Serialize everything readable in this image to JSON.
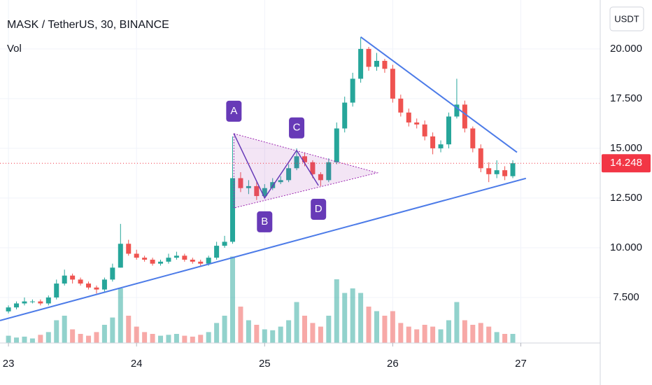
{
  "chart_data": {
    "type": "candlestick",
    "title": "MASK / TetherUS, 30, BINANCE",
    "volume_label": "Vol",
    "currency": "USDT",
    "x": [
      23,
      23.0625,
      23.125,
      23.1875,
      23.25,
      23.3125,
      23.375,
      23.4375,
      23.5,
      23.5625,
      23.625,
      23.6875,
      23.75,
      23.8125,
      23.875,
      23.9375,
      24,
      24.0625,
      24.125,
      24.1875,
      24.25,
      24.3125,
      24.375,
      24.4375,
      24.5,
      24.5625,
      24.625,
      24.6875,
      24.75,
      24.8125,
      24.875,
      24.9375,
      25,
      25.0625,
      25.125,
      25.1875,
      25.25,
      25.3125,
      25.375,
      25.4375,
      25.5,
      25.5625,
      25.625,
      25.6875,
      25.75,
      25.8125,
      25.875,
      25.9375,
      26,
      26.0625,
      26.125,
      26.1875,
      26.25,
      26.3125,
      26.375,
      26.4375,
      26.5,
      26.5625,
      26.625,
      26.6875,
      26.75,
      26.8125,
      26.875,
      26.9375
    ],
    "open": [
      6.8,
      7.0,
      7.2,
      7.3,
      7.3,
      7.2,
      7.5,
      8.2,
      8.6,
      8.4,
      8.2,
      8.0,
      7.9,
      8.4,
      9.0,
      10.2,
      9.7,
      9.5,
      9.4,
      9.2,
      9.3,
      9.5,
      9.6,
      9.4,
      9.3,
      9.2,
      9.5,
      10.1,
      10.3,
      13.5,
      13.0,
      13.1,
      12.6,
      13.0,
      13.3,
      13.4,
      14.0,
      14.6,
      14.3,
      13.7,
      13.4,
      14.3,
      16.0,
      17.3,
      18.5,
      20.0,
      19.1,
      19.4,
      19.0,
      17.5,
      16.8,
      16.3,
      16.2,
      15.6,
      15.0,
      15.2,
      16.6,
      17.2,
      16.0,
      15.0,
      14.0,
      13.7,
      13.9,
      13.6
    ],
    "high": [
      7.1,
      7.3,
      7.5,
      7.4,
      7.4,
      7.6,
      8.4,
      8.9,
      8.7,
      8.5,
      8.3,
      8.1,
      8.5,
      9.2,
      11.2,
      10.4,
      9.9,
      9.6,
      9.5,
      9.4,
      9.7,
      9.8,
      9.7,
      9.5,
      9.4,
      9.6,
      10.3,
      10.6,
      15.6,
      13.8,
      13.4,
      13.3,
      13.2,
      13.5,
      13.6,
      14.2,
      15.0,
      14.8,
      14.4,
      13.8,
      14.5,
      16.3,
      17.6,
      18.8,
      20.6,
      20.1,
      19.8,
      19.5,
      19.2,
      17.7,
      17.0,
      16.5,
      16.4,
      15.8,
      15.4,
      16.8,
      18.5,
      17.4,
      16.1,
      15.2,
      14.3,
      14.4,
      14.1,
      14.4
    ],
    "low": [
      6.7,
      6.9,
      7.1,
      7.2,
      7.1,
      7.1,
      7.4,
      8.1,
      8.2,
      8.1,
      7.9,
      7.7,
      7.8,
      8.3,
      9.0,
      9.6,
      9.4,
      9.3,
      9.1,
      9.1,
      9.2,
      9.4,
      9.3,
      9.2,
      9.1,
      9.1,
      9.4,
      10.0,
      10.2,
      12.8,
      12.7,
      12.4,
      12.5,
      12.9,
      13.2,
      13.3,
      13.9,
      14.1,
      13.5,
      13.1,
      13.3,
      14.2,
      15.8,
      17.1,
      18.3,
      18.9,
      18.9,
      18.8,
      17.3,
      16.6,
      16.1,
      16.0,
      15.4,
      14.7,
      14.8,
      15.0,
      16.5,
      15.8,
      14.8,
      13.8,
      13.3,
      13.5,
      13.4,
      13.5
    ],
    "close": [
      7.0,
      7.2,
      7.3,
      7.3,
      7.2,
      7.5,
      8.2,
      8.6,
      8.4,
      8.2,
      8.0,
      7.9,
      8.4,
      9.0,
      10.2,
      9.7,
      9.5,
      9.4,
      9.2,
      9.3,
      9.5,
      9.6,
      9.4,
      9.3,
      9.2,
      9.5,
      10.1,
      10.3,
      13.5,
      13.0,
      13.1,
      12.6,
      13.0,
      13.3,
      13.4,
      14.0,
      14.6,
      14.3,
      13.7,
      13.4,
      14.3,
      16.0,
      17.3,
      18.5,
      20.0,
      19.1,
      19.4,
      19.0,
      17.5,
      16.8,
      16.3,
      16.2,
      15.6,
      15.0,
      15.2,
      16.6,
      17.2,
      16.0,
      15.0,
      14.0,
      13.7,
      13.9,
      13.6,
      14.25
    ],
    "volume": [
      8,
      6,
      7,
      5,
      9,
      12,
      25,
      30,
      15,
      10,
      8,
      12,
      20,
      28,
      60,
      30,
      18,
      12,
      10,
      8,
      9,
      10,
      8,
      7,
      9,
      12,
      22,
      30,
      95,
      40,
      25,
      20,
      15,
      14,
      18,
      25,
      45,
      30,
      22,
      18,
      30,
      70,
      55,
      60,
      55,
      40,
      35,
      30,
      35,
      22,
      18,
      15,
      20,
      18,
      15,
      25,
      45,
      25,
      20,
      22,
      18,
      12,
      10,
      10
    ],
    "volume_lim": [
      0,
      100
    ],
    "up_color": "#26a69a",
    "down_color": "#ef5350",
    "xlim": [
      22.934,
      27.62
    ],
    "xticks": [
      23,
      24,
      25,
      26,
      27
    ],
    "ylim": [
      5.21,
      22.46
    ],
    "yticks": [
      {
        "value": 7.5,
        "label": "7.500"
      },
      {
        "value": 10,
        "label": "10.000"
      },
      {
        "value": 12.5,
        "label": "12.500"
      },
      {
        "value": 15,
        "label": "15.000"
      },
      {
        "value": 17.5,
        "label": "17.500"
      },
      {
        "value": 20,
        "label": "20.000"
      }
    ],
    "grid": true,
    "last_price": 14.248,
    "last_price_color": "#f23645",
    "triangle": {
      "x": [
        24.76,
        25.88,
        24.76
      ],
      "y": [
        15.74,
        13.77,
        12.0
      ],
      "color": "#9c27b0"
    },
    "wave": {
      "labels": [
        "A",
        "B",
        "C",
        "D"
      ],
      "x": [
        24.76,
        25.0,
        25.25,
        25.42
      ],
      "y": [
        15.74,
        12.5,
        14.9,
        13.13
      ],
      "color": "#673ab7"
    },
    "trendlines": [
      {
        "x": [
          22.934,
          27.04
        ],
        "y": [
          6.34,
          13.49
        ],
        "color": "#4c7be8"
      },
      {
        "x": [
          25.75,
          26.97
        ],
        "y": [
          20.6,
          14.8
        ],
        "color": "#4c7be8"
      }
    ]
  }
}
